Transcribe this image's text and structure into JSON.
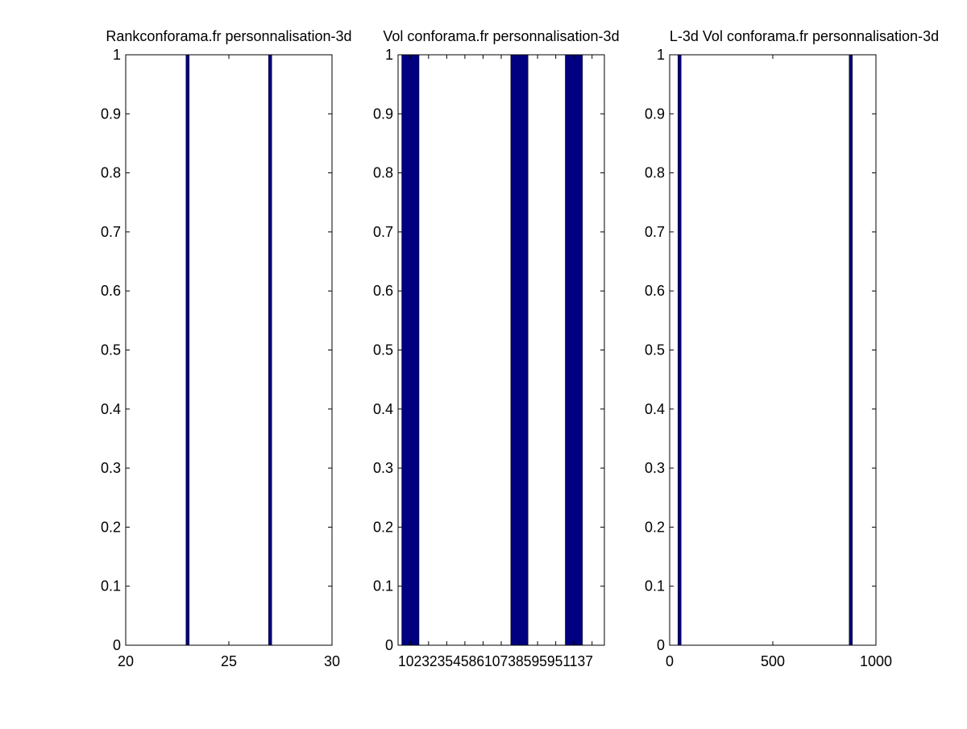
{
  "chart_data": [
    {
      "type": "bar",
      "title": "Rankconforama.fr personnalisation-3d",
      "xlim": [
        20,
        30
      ],
      "ylim": [
        0,
        1
      ],
      "xticks": [
        "20",
        "25",
        "30"
      ],
      "yticks": [
        "0",
        "0.1",
        "0.2",
        "0.3",
        "0.4",
        "0.5",
        "0.6",
        "0.7",
        "0.8",
        "0.9",
        "1"
      ],
      "x": [
        23,
        27
      ],
      "values": [
        1,
        1
      ],
      "bar_color": "#000080"
    },
    {
      "type": "bar",
      "title": "Vol conforama.fr personnalisation-3d",
      "ylim": [
        0,
        1
      ],
      "xtick_text": "1023235458610738595951137",
      "yticks": [
        "0",
        "0.1",
        "0.2",
        "0.3",
        "0.4",
        "0.5",
        "0.6",
        "0.7",
        "0.8",
        "0.9",
        "1"
      ],
      "bins": 11,
      "values": [
        1,
        0,
        0,
        0,
        0,
        0,
        1,
        0,
        0,
        1,
        0
      ],
      "bar_color": "#000080"
    },
    {
      "type": "bar",
      "title": "L-3d Vol conforama.fr personnalisation-3d",
      "xlim": [
        0,
        1000
      ],
      "ylim": [
        0,
        1
      ],
      "xticks": [
        "0",
        "500",
        "1000"
      ],
      "yticks": [
        "0",
        "0.1",
        "0.2",
        "0.3",
        "0.4",
        "0.5",
        "0.6",
        "0.7",
        "0.8",
        "0.9",
        "1"
      ],
      "x": [
        48,
        878
      ],
      "values": [
        1,
        1
      ],
      "bar_color": "#000080"
    }
  ]
}
